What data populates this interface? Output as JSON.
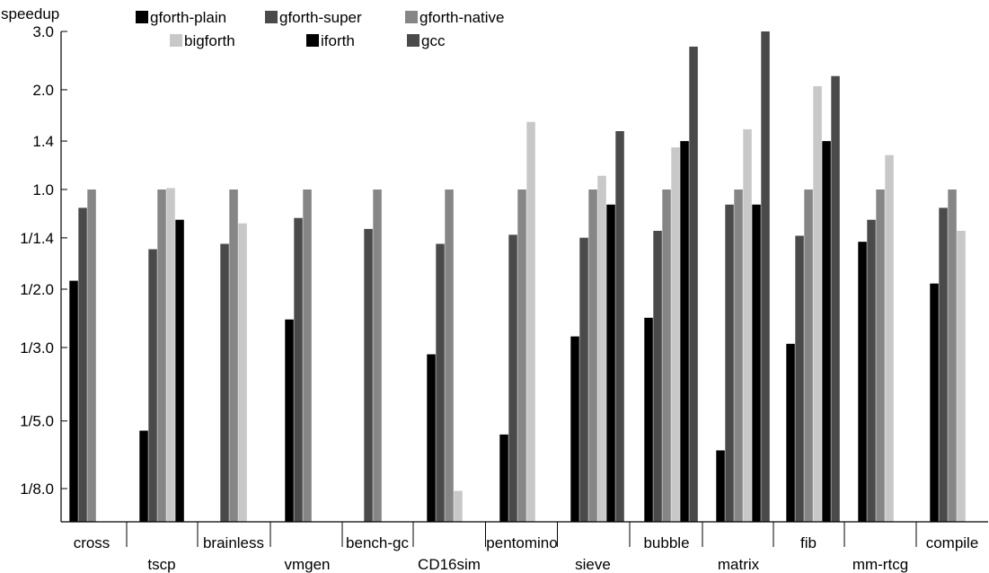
{
  "chart_data": {
    "type": "bar",
    "ylabel": "speedup",
    "y_scale": "log",
    "yticks": [
      {
        "value": 0.125,
        "label": "1/8.0"
      },
      {
        "value": 0.2,
        "label": "1/5.0"
      },
      {
        "value": 0.3333,
        "label": "1/3.0"
      },
      {
        "value": 0.5,
        "label": "1/2.0"
      },
      {
        "value": 0.7143,
        "label": "1/1.4"
      },
      {
        "value": 1.0,
        "label": "1.0"
      },
      {
        "value": 1.4,
        "label": "1.4"
      },
      {
        "value": 2.0,
        "label": "2.0"
      },
      {
        "value": 3.0,
        "label": "3.0"
      }
    ],
    "ylim": [
      0.112,
      3.0
    ],
    "categories": [
      "cross",
      "tscp",
      "brainless",
      "vmgen",
      "bench-gc",
      "CD16sim",
      "pentomino",
      "sieve",
      "bubble",
      "matrix",
      "fib",
      "mm-rtcg",
      "compile"
    ],
    "legend": {
      "placement": "top-left"
    },
    "series": [
      {
        "name": "gforth-plain",
        "color": "#000000",
        "values": [
          0.53,
          0.187,
          null,
          0.405,
          null,
          0.318,
          0.182,
          0.36,
          0.41,
          0.163,
          0.342,
          0.695,
          0.52
        ]
      },
      {
        "name": "gforth-super",
        "color": "#4a4a4a",
        "values": [
          0.88,
          0.66,
          0.685,
          0.82,
          0.76,
          0.685,
          0.73,
          0.715,
          0.75,
          0.9,
          0.725,
          0.81,
          0.88
        ]
      },
      {
        "name": "gforth-native",
        "color": "#868686",
        "values": [
          1.0,
          1.0,
          1.0,
          1.0,
          1.0,
          1.0,
          1.0,
          1.0,
          1.0,
          1.0,
          1.0,
          1.0,
          1.0
        ]
      },
      {
        "name": "bigforth",
        "color": "#c8c8c8",
        "values": [
          null,
          1.01,
          0.79,
          null,
          null,
          0.123,
          1.6,
          1.1,
          1.34,
          1.52,
          2.05,
          1.27,
          0.75
        ]
      },
      {
        "name": "iforth",
        "color": "#000000",
        "values": [
          null,
          0.81,
          null,
          null,
          null,
          null,
          null,
          0.9,
          1.4,
          0.9,
          1.4,
          null,
          null
        ]
      },
      {
        "name": "gcc",
        "color": "#4a4a4a",
        "values": [
          null,
          null,
          null,
          null,
          null,
          null,
          null,
          1.5,
          2.7,
          3.0,
          2.2,
          null,
          null
        ]
      }
    ]
  }
}
